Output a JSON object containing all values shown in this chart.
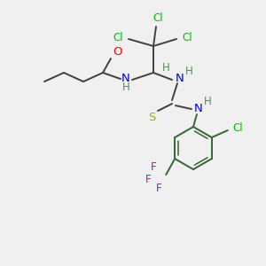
{
  "bg_color": "#f0f0f0",
  "bond_color": "#404040",
  "colors": {
    "O": "#ff0000",
    "N": "#0000dd",
    "S": "#aaaa00",
    "Cl": "#00bb00",
    "F": "#cc00cc",
    "H": "#558855",
    "ring": "#336633"
  },
  "figsize": [
    3.0,
    3.0
  ],
  "dpi": 100
}
